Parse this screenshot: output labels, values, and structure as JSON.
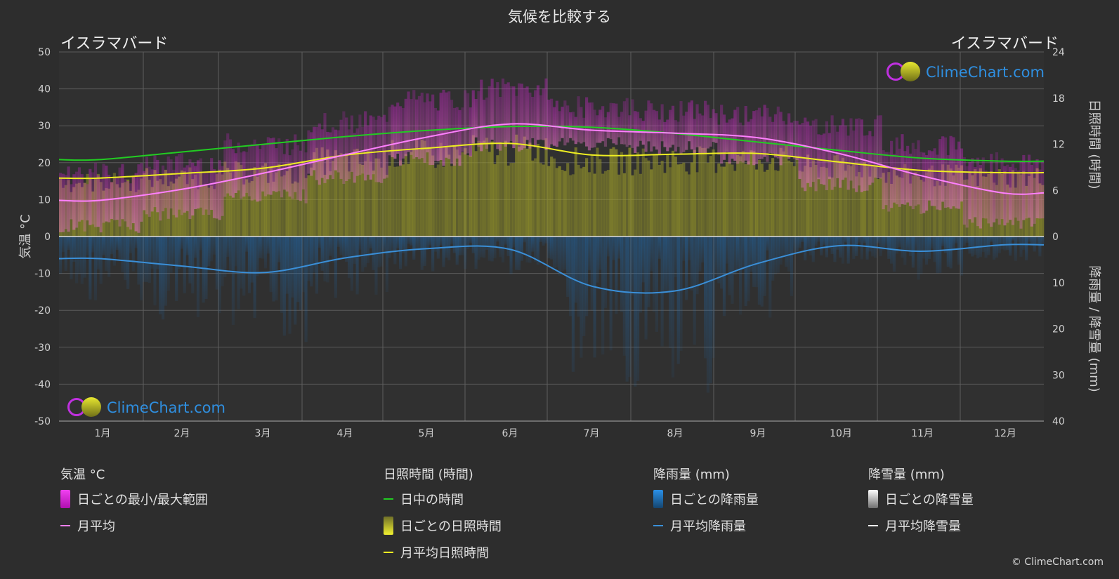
{
  "title": "気候を比較する",
  "city_left": "イスラマバード",
  "city_right": "イスラマバード",
  "watermark": "ClimeChart.com",
  "copyright": "© ClimeChart.com",
  "colors": {
    "temp_range": "#e020e0",
    "temp_avg": "#ff80ff",
    "daylight": "#22cc22",
    "sunshine_fill": "#a6a62a",
    "sunshine_avg": "#eeee22",
    "rain": "#1e6fb8",
    "rain_avg": "#3a8fd8",
    "snow_avg": "#ffffff"
  },
  "chart_data": {
    "type": "area",
    "months": [
      "1月",
      "2月",
      "3月",
      "4月",
      "5月",
      "6月",
      "7月",
      "8月",
      "9月",
      "10月",
      "11月",
      "12月"
    ],
    "left_axis": {
      "label": "気温 °C",
      "ylim": [
        -50,
        50
      ],
      "ticks": [
        50,
        40,
        30,
        20,
        10,
        0,
        -10,
        -20,
        -30,
        -40,
        -50
      ]
    },
    "right_axis_top": {
      "label": "日照時間 (時間)",
      "ylim": [
        0,
        24
      ],
      "ticks": [
        24,
        18,
        12,
        6,
        0
      ]
    },
    "right_axis_bottom": {
      "label": "降雨量 / 降雪量 (mm)",
      "ylim": [
        0,
        40
      ],
      "ticks": [
        0,
        10,
        20,
        30,
        40
      ]
    },
    "grid": true,
    "series": [
      {
        "name": "月平均",
        "axis": "temperature",
        "values": [
          9.8,
          12.8,
          17.2,
          22.2,
          27.0,
          30.5,
          28.8,
          28.0,
          26.8,
          22.5,
          16.5,
          11.8
        ]
      },
      {
        "name": "日中の時間",
        "axis": "sunshine",
        "values": [
          10.0,
          11.0,
          12.0,
          13.0,
          13.8,
          14.3,
          14.2,
          13.4,
          12.3,
          11.2,
          10.2,
          9.8
        ]
      },
      {
        "name": "月平均日照時間",
        "axis": "sunshine",
        "values": [
          7.6,
          8.2,
          8.9,
          10.6,
          11.5,
          12.1,
          10.6,
          10.7,
          10.8,
          9.7,
          8.6,
          8.3
        ]
      },
      {
        "name": "月平均降雨量",
        "axis": "precipitation",
        "values": [
          4.8,
          6.4,
          7.8,
          4.6,
          2.6,
          2.8,
          10.8,
          11.8,
          5.9,
          2.0,
          3.2,
          1.8
        ]
      },
      {
        "name": "日ごとの最小/最大範囲",
        "axis": "temperature",
        "min": [
          3,
          6,
          11,
          16,
          21,
          25,
          25,
          24,
          21,
          14,
          8,
          4
        ],
        "max": [
          17,
          20,
          25,
          31,
          37,
          40,
          35,
          34,
          33,
          30,
          25,
          20
        ]
      }
    ]
  },
  "legend": {
    "groups": [
      {
        "title": "気温 °C",
        "items": [
          {
            "label": "日ごとの最小/最大範囲",
            "kind": "box",
            "color": "#e020e0"
          },
          {
            "label": "月平均",
            "kind": "line",
            "color": "#ff80ff"
          }
        ]
      },
      {
        "title": "日照時間 (時間)",
        "items": [
          {
            "label": "日中の時間",
            "kind": "line",
            "color": "#22cc22"
          },
          {
            "label": "日ごとの日照時間",
            "kind": "box",
            "color": "#cccc2a"
          },
          {
            "label": "月平均日照時間",
            "kind": "line",
            "color": "#eeee22"
          }
        ]
      },
      {
        "title": "降雨量 (mm)",
        "items": [
          {
            "label": "日ごとの降雨量",
            "kind": "box",
            "color": "#1e7fd0"
          },
          {
            "label": "月平均降雨量",
            "kind": "line",
            "color": "#3a8fd8"
          }
        ]
      },
      {
        "title": "降雪量 (mm)",
        "items": [
          {
            "label": "日ごとの降雪量",
            "kind": "box",
            "color": "#dddddd"
          },
          {
            "label": "月平均降雪量",
            "kind": "line",
            "color": "#ffffff"
          }
        ]
      }
    ]
  }
}
